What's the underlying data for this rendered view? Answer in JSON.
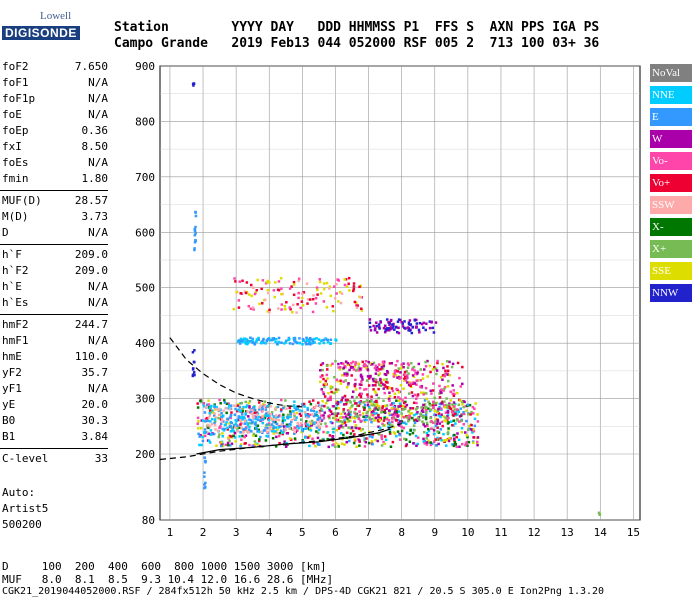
{
  "logo": {
    "top": "Lowell",
    "main": "DIGISONDE"
  },
  "header": {
    "labels": "Station        YYYY DAY   DDD HHMMSS P1  FFS S  AXN PPS IGA PS",
    "values": "Campo Grande   2019 Feb13 044 052000 RSF 005 2  713 100 03+ 36"
  },
  "params": [
    {
      "k": "foF2",
      "v": "7.650"
    },
    {
      "k": "foF1",
      "v": "N/A"
    },
    {
      "k": "foF1p",
      "v": "N/A"
    },
    {
      "k": "foE",
      "v": "N/A"
    },
    {
      "k": "foEp",
      "v": "0.36"
    },
    {
      "k": "fxI",
      "v": "8.50"
    },
    {
      "k": "foEs",
      "v": "N/A"
    },
    {
      "k": "fmin",
      "v": "1.80"
    },
    {
      "k": "MUF(D)",
      "v": "28.57"
    },
    {
      "k": "M(D)",
      "v": "3.73"
    },
    {
      "k": "D",
      "v": "N/A"
    },
    {
      "k": "h`F",
      "v": "209.0"
    },
    {
      "k": "h`F2",
      "v": "209.0"
    },
    {
      "k": "h`E",
      "v": "N/A"
    },
    {
      "k": "h`Es",
      "v": "N/A"
    },
    {
      "k": "hmF2",
      "v": "244.7"
    },
    {
      "k": "hmF1",
      "v": "N/A"
    },
    {
      "k": "hmE",
      "v": "110.0"
    },
    {
      "k": "yF2",
      "v": "35.7"
    },
    {
      "k": "yF1",
      "v": "N/A"
    },
    {
      "k": "yE",
      "v": "20.0"
    },
    {
      "k": "B0",
      "v": "30.3"
    },
    {
      "k": "B1",
      "v": "3.84"
    },
    {
      "k": "C-level",
      "v": "33"
    }
  ],
  "auto": {
    "line1": "Auto:",
    "line2": "Artist5",
    "line3": "500200"
  },
  "legend": [
    {
      "label": "NoVal",
      "color": "#808080"
    },
    {
      "label": "NNE",
      "color": "#00ccff"
    },
    {
      "label": "E",
      "color": "#3399ff"
    },
    {
      "label": "W",
      "color": "#aa00aa"
    },
    {
      "label": "Vo-",
      "color": "#ff44aa"
    },
    {
      "label": "Vo+",
      "color": "#ee0033"
    },
    {
      "label": "SSW",
      "color": "#ffaaaa"
    },
    {
      "label": "X-",
      "color": "#007700"
    },
    {
      "label": "X+",
      "color": "#77bb55"
    },
    {
      "label": "SSE",
      "color": "#dddd00"
    },
    {
      "label": "NNW",
      "color": "#2222cc"
    }
  ],
  "chart_data": {
    "type": "scatter",
    "xlabel": "",
    "ylabel": "",
    "xlim": [
      0.7,
      15.2
    ],
    "ylim": [
      80,
      900
    ],
    "xticks": [
      "1",
      "2",
      "3",
      "4",
      "5",
      "6",
      "7",
      "8",
      "9",
      "10",
      "11",
      "12",
      "13",
      "14",
      "15"
    ],
    "yticks": [
      "900",
      "800",
      "700",
      "600",
      "500",
      "400",
      "300",
      "200",
      "80"
    ],
    "grid": true,
    "series": [
      {
        "name": "trace-main",
        "x": [
          1.8,
          2.5,
          3.5,
          4.5,
          5.5,
          6.5,
          7.3,
          7.65
        ],
        "y": [
          200,
          208,
          212,
          218,
          222,
          230,
          238,
          245
        ]
      },
      {
        "name": "trace-dashed",
        "x": [
          1.0,
          1.5,
          2.0,
          2.5,
          3.0,
          3.5,
          4.0,
          4.5,
          5.0
        ],
        "y": [
          410,
          370,
          345,
          325,
          310,
          300,
          292,
          287,
          285
        ]
      },
      {
        "name": "trace-dashed-low",
        "x": [
          0.7,
          1.5,
          2.5,
          3.5,
          4.5,
          5.5,
          6.5,
          7.5,
          8.0
        ],
        "y": [
          190,
          195,
          205,
          212,
          218,
          224,
          232,
          245,
          255
        ]
      }
    ]
  },
  "footer": {
    "line1": "D     100  200  400  600  800 1000 1500 3000 [km]",
    "line2": "MUF   8.0  8.1  8.5  9.3 10.4 12.0 16.6 28.6 [MHz]",
    "line3": "CGK21_2019044052000.RSF / 284fx512h 50 kHz 2.5 km / DPS-4D CGK21 821 / 20.5 S 305.0 E Ion2Png 1.3.20"
  }
}
